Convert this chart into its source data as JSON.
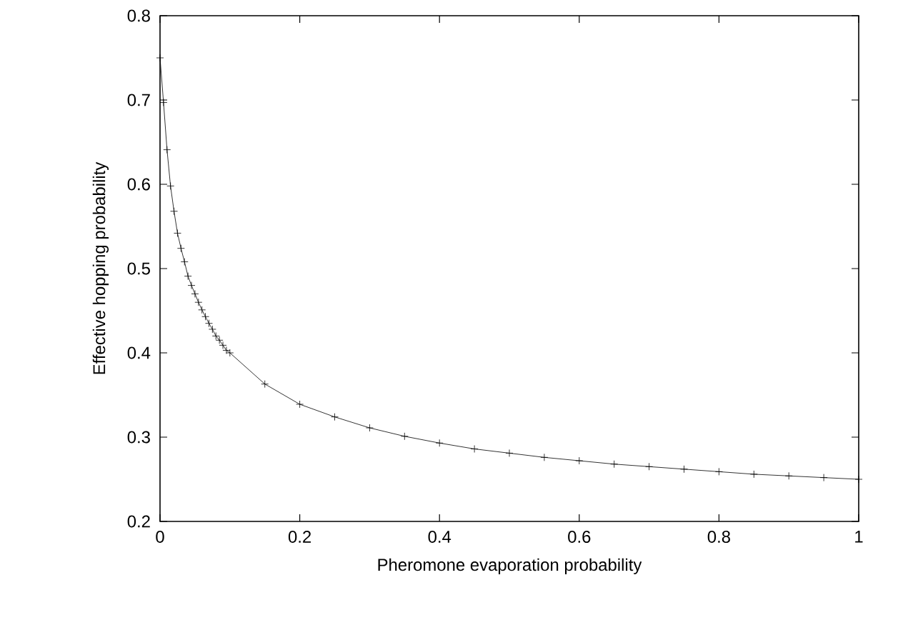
{
  "chart_data": {
    "type": "line",
    "xlabel": "Pheromone evaporation probability",
    "ylabel": "Effective hopping probability",
    "x": [
      0,
      0.005,
      0.01,
      0.015,
      0.02,
      0.025,
      0.03,
      0.035,
      0.04,
      0.045,
      0.05,
      0.055,
      0.06,
      0.065,
      0.07,
      0.075,
      0.08,
      0.085,
      0.09,
      0.095,
      0.1,
      0.15,
      0.2,
      0.25,
      0.3,
      0.35,
      0.4,
      0.45,
      0.5,
      0.55,
      0.6,
      0.65,
      0.7,
      0.75,
      0.8,
      0.85,
      0.9,
      0.95,
      1
    ],
    "values": [
      0.75,
      0.697,
      0.641,
      0.598,
      0.568,
      0.542,
      0.524,
      0.508,
      0.491,
      0.48,
      0.47,
      0.46,
      0.451,
      0.443,
      0.435,
      0.428,
      0.42,
      0.415,
      0.409,
      0.403,
      0.4,
      0.363,
      0.339,
      0.324,
      0.311,
      0.301,
      0.293,
      0.286,
      0.281,
      0.276,
      0.272,
      0.268,
      0.265,
      0.262,
      0.259,
      0.256,
      0.254,
      0.252,
      0.25
    ],
    "color": "#000000",
    "marker": "cross",
    "line_style": "solid",
    "grid": false,
    "xlim": [
      0,
      1
    ],
    "xticks": [
      0,
      0.2,
      0.4,
      0.6,
      0.8,
      1
    ],
    "ylim": [
      0.2,
      0.8
    ],
    "yticks": [
      0.2,
      0.3,
      0.4,
      0.5,
      0.6,
      0.7,
      0.8
    ]
  }
}
